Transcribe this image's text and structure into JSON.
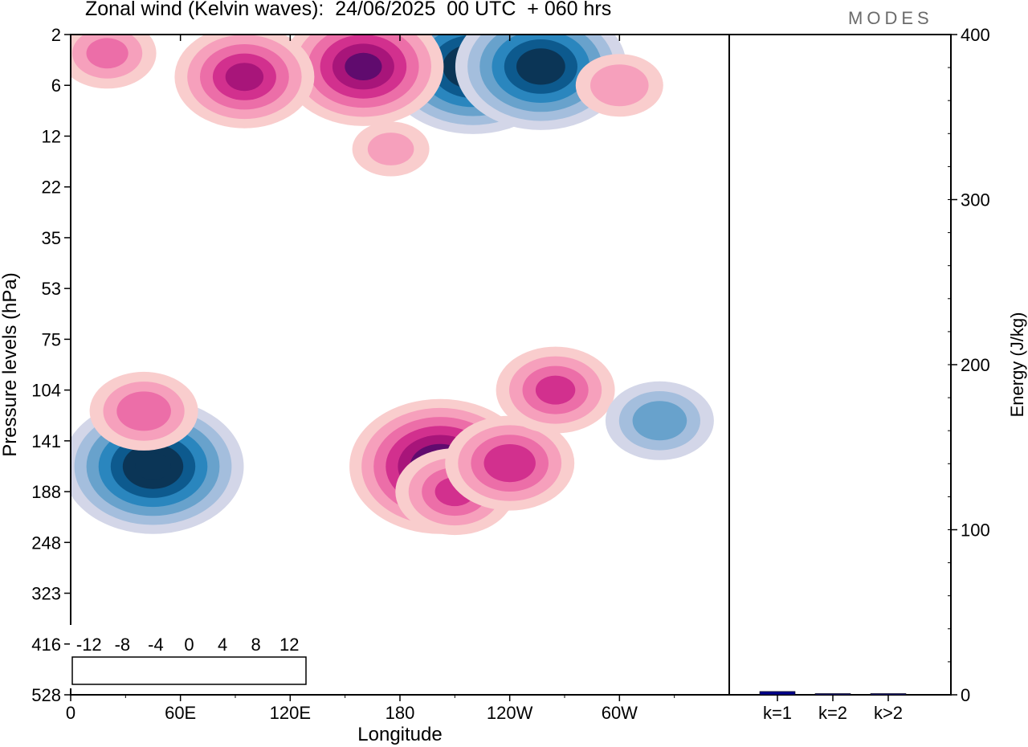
{
  "header": {
    "title": "Zonal wind (Kelvin waves):  24/06/2025  00 UTC  + 060 hrs",
    "brand": "MODES"
  },
  "chart_data": [
    {
      "type": "heatmap",
      "title": "Zonal wind (Kelvin waves):  24/06/2025  00 UTC  + 060 hrs",
      "xlabel": "Longitude",
      "ylabel": "Pressure levels (hPa)",
      "x_ticks": [
        "0",
        "60E",
        "120E",
        "180",
        "120W",
        "60W"
      ],
      "y_ticks": [
        "2",
        "6",
        "12",
        "22",
        "35",
        "53",
        "75",
        "104",
        "141",
        "188",
        "248",
        "323",
        "416",
        "528"
      ],
      "legend": {
        "labels": [
          "-12",
          "-8",
          "-4",
          "0",
          "4",
          "8",
          "12"
        ],
        "colors": [
          "#0b3556",
          "#0d5a8e",
          "#2a86be",
          "#68a2cc",
          "#a4bedd",
          "#d3d6e8",
          "#ffffff",
          "#ffffff",
          "#f9cdcd",
          "#f6a0bc",
          "#ec6ea8",
          "#d2308e",
          "#a8157a",
          "#600b6e"
        ]
      },
      "features": [
        {
          "lon": 45,
          "level": 163,
          "value": -14
        },
        {
          "lon": 20,
          "level": 3,
          "value": 6
        },
        {
          "lon": 40,
          "level": 118,
          "value": 7
        },
        {
          "lon": 220,
          "level": 4,
          "value": -14
        },
        {
          "lon": 160,
          "level": 4,
          "value": 12
        },
        {
          "lon": 257,
          "level": 4,
          "value": -13
        },
        {
          "lon": 202,
          "level": 163,
          "value": 14
        },
        {
          "lon": 210,
          "level": 188,
          "value": 8
        },
        {
          "lon": 240,
          "level": 160,
          "value": 9
        },
        {
          "lon": 265,
          "level": 104,
          "value": 8
        },
        {
          "lon": 322,
          "level": 125,
          "value": -7
        },
        {
          "lon": 175,
          "level": 14,
          "value": 4
        },
        {
          "lon": 95,
          "level": 5,
          "value": 10
        },
        {
          "lon": 300,
          "level": 6,
          "value": 5
        }
      ]
    },
    {
      "type": "bar",
      "ylabel": "Energy (J/kg)",
      "categories": [
        "k=1",
        "k=2",
        "k>2"
      ],
      "values": [
        2,
        0.5,
        0.6
      ],
      "ylim": [
        0,
        400
      ],
      "y_ticks": [
        "0",
        "100",
        "200",
        "300",
        "400"
      ],
      "colors": [
        "#00008b",
        "#00008b",
        "#00008b"
      ]
    }
  ]
}
